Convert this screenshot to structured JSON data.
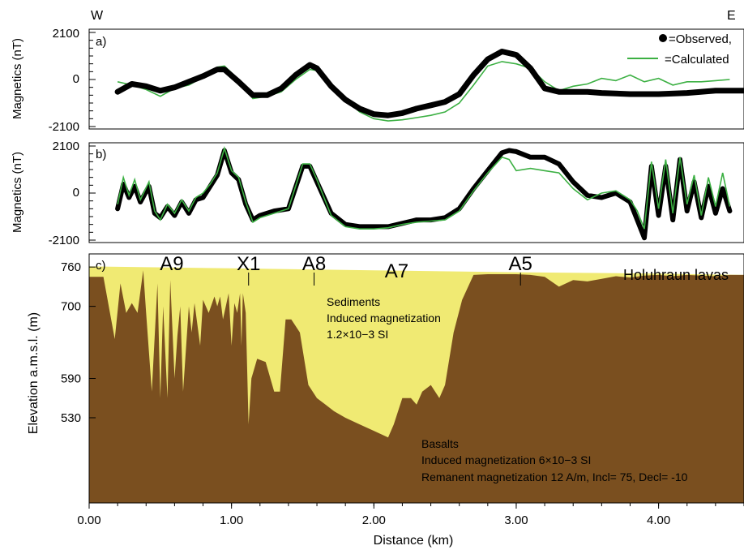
{
  "orientation": {
    "west": "W",
    "east": "E"
  },
  "chart_data": [
    {
      "type": "line",
      "panel_label": "a)",
      "ylabel": "Magnetics (nT)",
      "y_ticks": [
        "2100",
        "0",
        "-2100"
      ],
      "ylim": [
        -2100,
        2100
      ],
      "xlim": [
        0,
        4.6
      ],
      "legend": {
        "position": "top-right",
        "observed": "=Observed,",
        "calculated": "=Calculated"
      },
      "colors": {
        "observed": "#000000",
        "calculated": "#3cb043"
      },
      "series": [
        {
          "name": "=Observed,",
          "x": [
            0.2,
            0.3,
            0.4,
            0.5,
            0.6,
            0.7,
            0.8,
            0.9,
            0.95,
            1.05,
            1.15,
            1.25,
            1.35,
            1.45,
            1.55,
            1.6,
            1.7,
            1.8,
            1.9,
            2.0,
            2.1,
            2.2,
            2.3,
            2.4,
            2.5,
            2.6,
            2.7,
            2.8,
            2.9,
            3.0,
            3.1,
            3.2,
            3.3,
            3.4,
            3.5,
            3.6,
            3.8,
            4.0,
            4.2,
            4.4,
            4.6
          ],
          "y": [
            -550,
            -200,
            -300,
            -500,
            -350,
            -100,
            150,
            450,
            450,
            -100,
            -700,
            -700,
            -400,
            200,
            650,
            500,
            -300,
            -900,
            -1300,
            -1550,
            -1600,
            -1500,
            -1300,
            -1150,
            -1000,
            -650,
            200,
            900,
            1250,
            1100,
            500,
            -400,
            -550,
            -550,
            -550,
            -600,
            -650,
            -650,
            -600,
            -500,
            -500
          ]
        },
        {
          "name": "=Calculated",
          "x": [
            0.2,
            0.3,
            0.4,
            0.5,
            0.6,
            0.7,
            0.8,
            0.9,
            0.95,
            1.05,
            1.15,
            1.25,
            1.35,
            1.45,
            1.55,
            1.6,
            1.7,
            1.8,
            1.9,
            2.0,
            2.1,
            2.2,
            2.3,
            2.4,
            2.5,
            2.6,
            2.7,
            2.8,
            2.9,
            3.0,
            3.1,
            3.2,
            3.3,
            3.4,
            3.5,
            3.6,
            3.7,
            3.8,
            3.9,
            4.0,
            4.1,
            4.2,
            4.3,
            4.4,
            4.5
          ],
          "y": [
            -100,
            -250,
            -450,
            -750,
            -400,
            -250,
            100,
            550,
            600,
            0,
            -850,
            -750,
            -550,
            0,
            450,
            400,
            -350,
            -900,
            -1450,
            -1750,
            -1850,
            -1800,
            -1700,
            -1600,
            -1450,
            -1050,
            -250,
            600,
            800,
            700,
            500,
            -100,
            -500,
            -300,
            -200,
            50,
            -50,
            200,
            -100,
            50,
            -250,
            -100,
            -100,
            -50,
            0
          ]
        }
      ]
    },
    {
      "type": "line",
      "panel_label": "b)",
      "ylabel": "Magnetics (nT)",
      "y_ticks": [
        "2100",
        "0",
        "-2100"
      ],
      "ylim": [
        -2100,
        2100
      ],
      "xlim": [
        0,
        4.6
      ],
      "series": [
        {
          "name": "Observed",
          "x": [
            0.2,
            0.24,
            0.28,
            0.32,
            0.36,
            0.42,
            0.46,
            0.5,
            0.55,
            0.6,
            0.65,
            0.7,
            0.75,
            0.8,
            0.85,
            0.9,
            0.95,
            1.0,
            1.05,
            1.1,
            1.15,
            1.2,
            1.3,
            1.4,
            1.5,
            1.55,
            1.6,
            1.7,
            1.8,
            1.9,
            2.0,
            2.1,
            2.2,
            2.3,
            2.4,
            2.5,
            2.6,
            2.7,
            2.8,
            2.9,
            2.95,
            3.0,
            3.1,
            3.2,
            3.3,
            3.4,
            3.5,
            3.6,
            3.7,
            3.8,
            3.85,
            3.9,
            3.95,
            4.0,
            4.05,
            4.1,
            4.15,
            4.2,
            4.25,
            4.3,
            4.35,
            4.4,
            4.45,
            4.5
          ],
          "y": [
            -700,
            400,
            -200,
            300,
            -400,
            300,
            -900,
            -1100,
            -600,
            -1000,
            -400,
            -900,
            -300,
            -200,
            300,
            800,
            1900,
            900,
            600,
            -500,
            -1200,
            -1000,
            -800,
            -700,
            1200,
            1200,
            500,
            -900,
            -1400,
            -1500,
            -1500,
            -1500,
            -1350,
            -1200,
            -1200,
            -1100,
            -700,
            200,
            1000,
            1800,
            1900,
            1850,
            1600,
            1600,
            1300,
            500,
            -100,
            -200,
            0,
            -400,
            -1200,
            -2000,
            1200,
            -1000,
            1200,
            -1200,
            1500,
            -800,
            500,
            -1100,
            300,
            -900,
            200,
            -800
          ]
        },
        {
          "name": "Calculated",
          "x": [
            0.2,
            0.24,
            0.28,
            0.32,
            0.36,
            0.42,
            0.46,
            0.5,
            0.55,
            0.6,
            0.65,
            0.7,
            0.75,
            0.8,
            0.85,
            0.9,
            0.95,
            1.0,
            1.05,
            1.1,
            1.15,
            1.2,
            1.3,
            1.4,
            1.5,
            1.55,
            1.6,
            1.7,
            1.8,
            1.9,
            2.0,
            2.1,
            2.2,
            2.3,
            2.4,
            2.5,
            2.6,
            2.7,
            2.8,
            2.9,
            2.95,
            3.0,
            3.1,
            3.2,
            3.3,
            3.4,
            3.5,
            3.6,
            3.7,
            3.8,
            3.85,
            3.9,
            3.95,
            4.0,
            4.05,
            4.1,
            4.15,
            4.2,
            4.25,
            4.3,
            4.35,
            4.4,
            4.45,
            4.5
          ],
          "y": [
            -500,
            700,
            -100,
            600,
            -300,
            500,
            -800,
            -1200,
            -500,
            -900,
            -300,
            -800,
            -200,
            0,
            400,
            900,
            2000,
            1000,
            700,
            -400,
            -1300,
            -1100,
            -900,
            -700,
            1300,
            1300,
            600,
            -1000,
            -1500,
            -1600,
            -1600,
            -1550,
            -1400,
            -1300,
            -1250,
            -1200,
            -800,
            100,
            900,
            1600,
            1500,
            1000,
            1100,
            1000,
            900,
            200,
            -300,
            0,
            100,
            -300,
            -800,
            -1600,
            1400,
            -700,
            1500,
            -900,
            1600,
            -500,
            800,
            -1000,
            700,
            -600,
            900,
            -600
          ]
        }
      ]
    },
    {
      "type": "area",
      "panel_label": "c)",
      "ylabel": "Elevation a.m.s.l. (m)",
      "xlabel": "Distance (km)",
      "y_ticks": [
        "760",
        "700",
        "590",
        "530"
      ],
      "y_tick_values": [
        760,
        700,
        590,
        530
      ],
      "ylim": [
        400,
        780
      ],
      "xlim": [
        0,
        4.6
      ],
      "x_ticks": [
        "0.00",
        "1.00",
        "2.00",
        "3.00",
        "4.00"
      ],
      "x_tick_values": [
        0,
        1,
        2,
        3,
        4
      ],
      "colors": {
        "sediments": "#f0ea73",
        "basalts": "#7a4f1f"
      },
      "anomaly_labels": [
        {
          "label": "A9",
          "x": 0.58,
          "marker": false
        },
        {
          "label": "X1",
          "x": 1.12,
          "marker": true
        },
        {
          "label": "A8",
          "x": 1.58,
          "marker": true
        },
        {
          "label": "A7",
          "x": 2.16,
          "marker": false
        },
        {
          "label": "A5",
          "x": 3.03,
          "marker": true
        },
        {
          "label": "Holuhraun lavas",
          "x": 4.15,
          "marker": false
        }
      ],
      "units": [
        {
          "name": "Sediments",
          "lines": [
            "Sediments",
            "Induced magnetization",
            "1.2×10−3 SI"
          ]
        },
        {
          "name": "Basalts",
          "lines": [
            "Basalts",
            "Induced magnetization 6×10−3 SI",
            "Remanent magnetization 12 A/m, Incl= 75, Decl= -10"
          ]
        }
      ],
      "sediment_top": {
        "x": [
          0,
          1.0,
          2.0,
          3.0,
          4.0,
          4.6
        ],
        "y": [
          761,
          758,
          755,
          752,
          750,
          748
        ]
      },
      "basalt_top": {
        "x": [
          0,
          0.1,
          0.18,
          0.22,
          0.26,
          0.3,
          0.34,
          0.38,
          0.4,
          0.44,
          0.48,
          0.5,
          0.52,
          0.55,
          0.57,
          0.6,
          0.62,
          0.64,
          0.66,
          0.7,
          0.72,
          0.74,
          0.78,
          0.8,
          0.84,
          0.88,
          0.9,
          0.92,
          0.94,
          0.98,
          1.0,
          1.02,
          1.04,
          1.06,
          1.07,
          1.08,
          1.1,
          1.12,
          1.14,
          1.18,
          1.24,
          1.3,
          1.34,
          1.38,
          1.42,
          1.48,
          1.54,
          1.6,
          1.66,
          1.72,
          1.8,
          1.9,
          2.0,
          2.1,
          2.14,
          2.2,
          2.26,
          2.3,
          2.34,
          2.4,
          2.46,
          2.5,
          2.56,
          2.62,
          2.7,
          2.8,
          2.9,
          3.0,
          3.1,
          3.2,
          3.3,
          3.4,
          3.5,
          3.6,
          3.7,
          3.8,
          3.9,
          4.0,
          4.1,
          4.2,
          4.3,
          4.4,
          4.5,
          4.6
        ],
        "y": [
          745,
          745,
          650,
          735,
          690,
          705,
          690,
          755,
          690,
          570,
          735,
          560,
          700,
          560,
          740,
          590,
          655,
          700,
          570,
          700,
          660,
          705,
          640,
          710,
          690,
          715,
          700,
          715,
          680,
          720,
          640,
          705,
          690,
          720,
          640,
          720,
          690,
          520,
          590,
          620,
          615,
          570,
          570,
          680,
          680,
          660,
          580,
          560,
          550,
          540,
          530,
          520,
          510,
          500,
          520,
          560,
          560,
          550,
          570,
          580,
          560,
          580,
          660,
          710,
          748,
          749,
          749,
          749,
          748,
          745,
          730,
          740,
          738,
          742,
          746,
          744,
          747,
          748,
          746,
          748,
          747,
          746,
          748,
          748
        ]
      },
      "axis_bottom_y": 400
    }
  ]
}
